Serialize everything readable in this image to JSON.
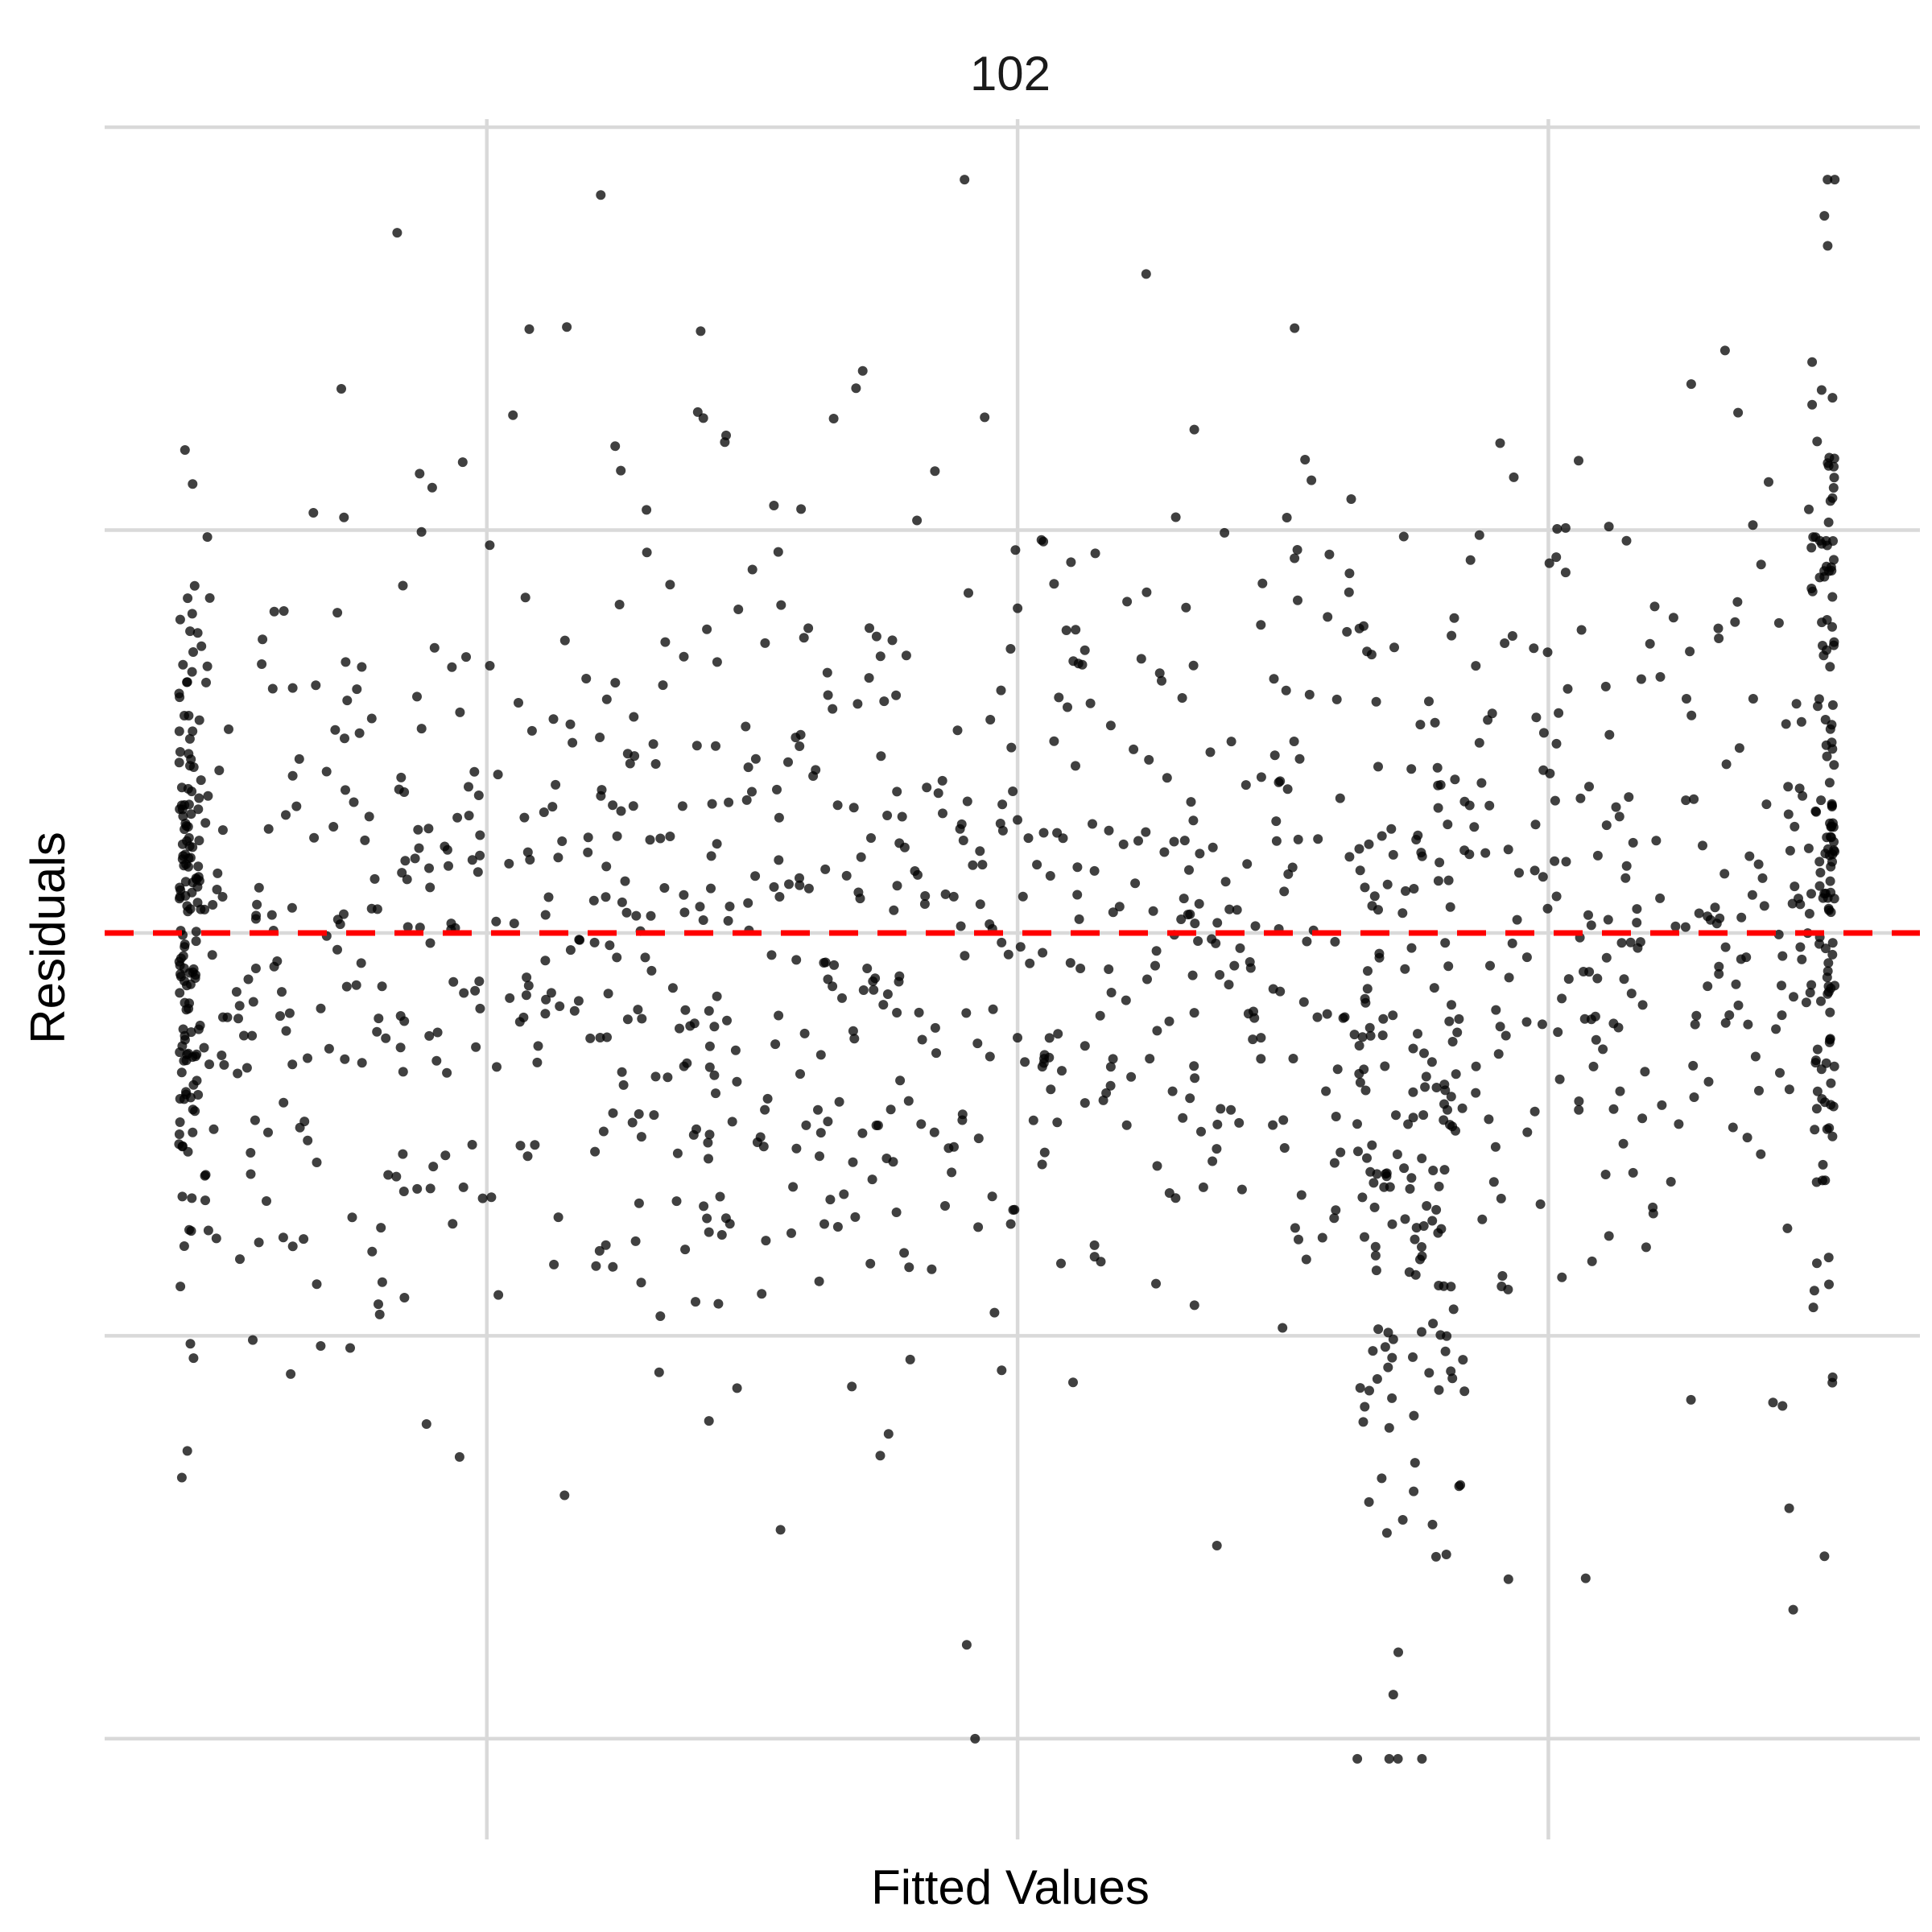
{
  "chart_data": {
    "type": "scatter",
    "title": "102",
    "xlabel": "Fitted Values",
    "ylabel": "Residuals",
    "xlim": [
      -0.18,
      1.53
    ],
    "ylim": [
      -2.25,
      2.02
    ],
    "x_gridlines": [
      0.18,
      0.68,
      1.18
    ],
    "y_gridlines": [
      -2.0,
      -1.0,
      0.0,
      1.0,
      2.0
    ],
    "x_tick_labels": [],
    "y_tick_labels": [],
    "reference_line": {
      "y": 0,
      "style": "dashed"
    },
    "colors": {
      "points": "#000000",
      "reference_line": "#ff0000",
      "grid": "#d9d9d9"
    },
    "n_points": 1500,
    "x_range_of_points": [
      -0.11,
      1.45
    ],
    "approx_residual_sd": 0.55,
    "point_clusters": [
      {
        "region": "left edge near x=-0.11",
        "density": "high"
      },
      {
        "region": "lower spread near x=1.0 to 1.1",
        "residual_min": -2.05
      },
      {
        "region": "right edge near x=1.45",
        "density": "high"
      }
    ],
    "extremes": {
      "max_residual": 1.87,
      "min_residual": -2.05
    }
  }
}
